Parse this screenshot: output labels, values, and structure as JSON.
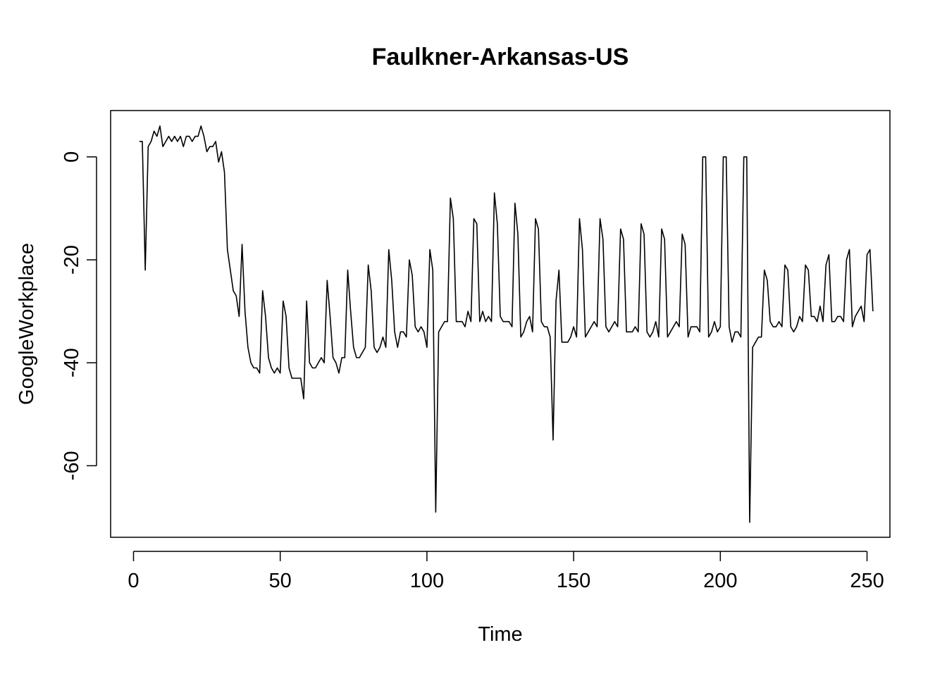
{
  "chart_data": {
    "type": "line",
    "title": "Faulkner-Arkansas-US",
    "xlabel": "Time",
    "ylabel": "GoogleWorkplace",
    "xlim": [
      -7.8,
      257.8
    ],
    "ylim": [
      -73.9,
      9.0
    ],
    "x_ticks": [
      0,
      50,
      100,
      150,
      200,
      250
    ],
    "y_ticks": [
      0,
      -20,
      -40,
      -60
    ],
    "grid": false,
    "legend": "none",
    "line_color": "#000000",
    "series": [
      {
        "x_start": 2,
        "values": [
          3,
          3,
          -22,
          2,
          3,
          5,
          4,
          6,
          2,
          3,
          4,
          3,
          4,
          3,
          4,
          2,
          4,
          4,
          3,
          4,
          4,
          6,
          4,
          1,
          2,
          2,
          3,
          -1,
          1,
          -3,
          -18,
          -22,
          -26,
          -27,
          -31,
          -17,
          -30,
          -37,
          -40,
          -41,
          -41,
          -42,
          -26,
          -31,
          -39,
          -41,
          -42,
          -41,
          -42,
          -28,
          -31,
          -41,
          -43,
          -43,
          -43,
          -43,
          -47,
          -28,
          -40,
          -41,
          -41,
          -40,
          -39,
          -40,
          -24,
          -31,
          -39,
          -40,
          -42,
          -39,
          -39,
          -22,
          -30,
          -37,
          -39,
          -39,
          -38,
          -37,
          -21,
          -26,
          -37,
          -38,
          -37,
          -35,
          -37,
          -18,
          -24,
          -34,
          -37,
          -34,
          -34,
          -35,
          -20,
          -23,
          -33,
          -34,
          -33,
          -34,
          -37,
          -18,
          -22,
          -69,
          -34,
          -33,
          -32,
          -32,
          -8,
          -12,
          -32,
          -32,
          -32,
          -33,
          -30,
          -32,
          -12,
          -13,
          -32,
          -30,
          -32,
          -31,
          -32,
          -7,
          -13,
          -31,
          -32,
          -32,
          -32,
          -33,
          -9,
          -15,
          -35,
          -34,
          -32,
          -31,
          -34,
          -12,
          -14,
          -32,
          -33,
          -33,
          -35,
          -55,
          -28,
          -22,
          -36,
          -36,
          -36,
          -35,
          -33,
          -35,
          -12,
          -18,
          -35,
          -34,
          -33,
          -32,
          -33,
          -12,
          -16,
          -33,
          -34,
          -33,
          -32,
          -33,
          -14,
          -16,
          -34,
          -34,
          -34,
          -33,
          -34,
          -13,
          -15,
          -34,
          -35,
          -34,
          -32,
          -35,
          -14,
          -16,
          -35,
          -34,
          -33,
          -32,
          -33,
          -15,
          -17,
          -35,
          -33,
          -33,
          -33,
          -34,
          0,
          0,
          -35,
          -34,
          -32,
          -34,
          -33,
          0,
          0,
          -33,
          -36,
          -34,
          -34,
          -35,
          0,
          0,
          -71,
          -37,
          -36,
          -35,
          -35,
          -22,
          -24,
          -32,
          -33,
          -33,
          -32,
          -33,
          -21,
          -22,
          -33,
          -34,
          -33,
          -31,
          -32,
          -21,
          -22,
          -31,
          -31,
          -32,
          -29,
          -32,
          -21,
          -19,
          -32,
          -32,
          -31,
          -31,
          -32,
          -20,
          -18,
          -33,
          -31,
          -30,
          -29,
          -32,
          -19,
          -18,
          -30
        ]
      }
    ]
  }
}
